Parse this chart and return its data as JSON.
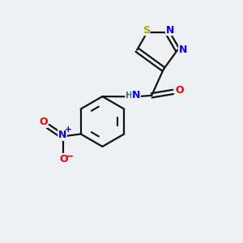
{
  "background_color": "#eef0f4",
  "atom_colors": {
    "S": "#aaaa00",
    "N": "#0000ee",
    "O": "#ee0000",
    "C": "#000000",
    "H": "#337777"
  },
  "bond_color": "#111111",
  "figsize": [
    3.0,
    3.0
  ],
  "dpi": 100,
  "xlim": [
    0,
    10
  ],
  "ylim": [
    0,
    10
  ]
}
